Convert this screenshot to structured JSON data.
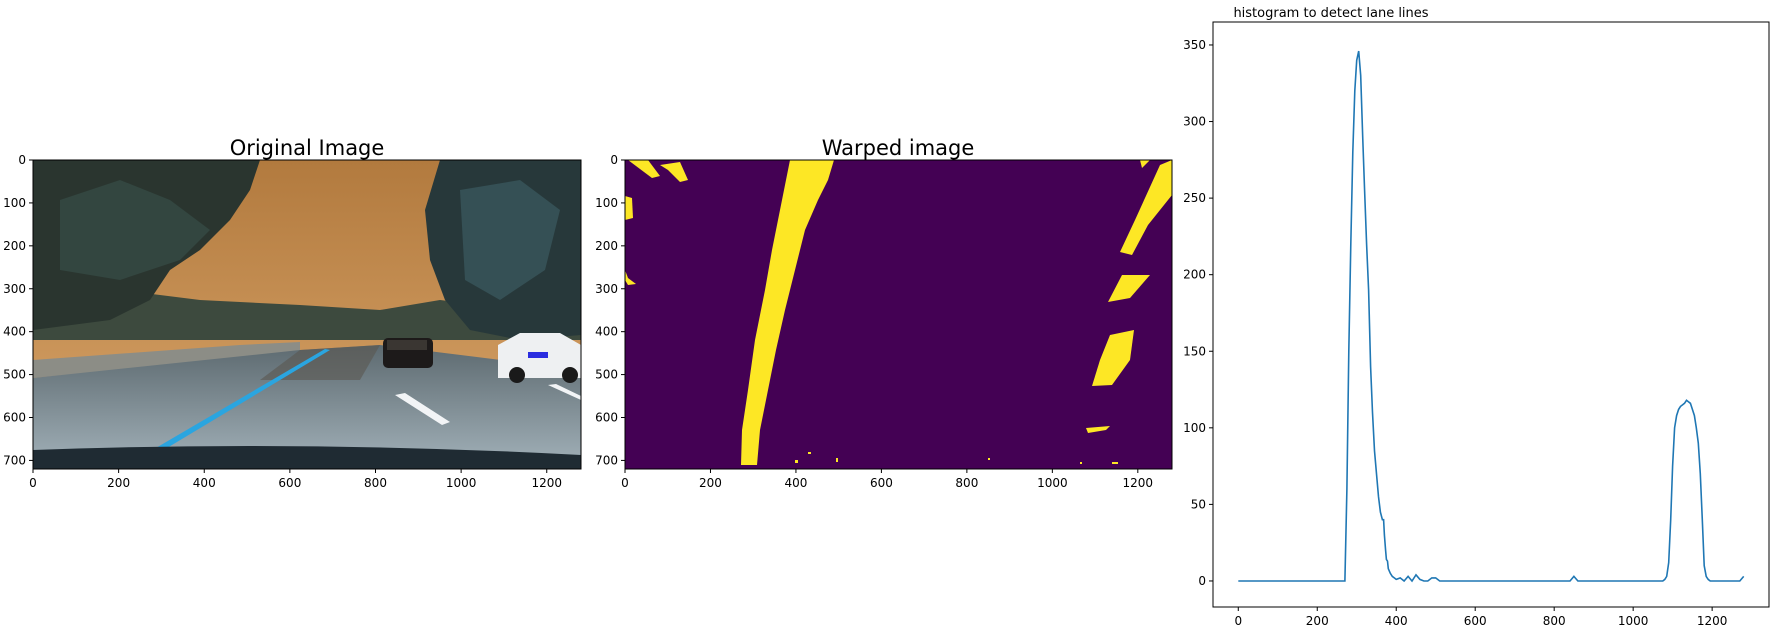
{
  "colors": {
    "line": "#1f77b4",
    "warped_background": "#440154",
    "warped_lane": "#fde725",
    "road_sky": "#c9945a",
    "road_surface": "#8a9aa3",
    "lane_marking_blue": "#2aa5e0"
  },
  "panels": {
    "original": {
      "title": "Original Image",
      "image_description_icon": "road-photo",
      "x_ticks": [
        "0",
        "200",
        "400",
        "600",
        "800",
        "1000",
        "1200"
      ],
      "y_ticks": [
        "0",
        "100",
        "200",
        "300",
        "400",
        "500",
        "600",
        "700"
      ]
    },
    "warped": {
      "title": "Warped image",
      "x_ticks": [
        "0",
        "200",
        "400",
        "600",
        "800",
        "1000",
        "1200"
      ],
      "y_ticks": [
        "0",
        "100",
        "200",
        "300",
        "400",
        "500",
        "600",
        "700"
      ]
    }
  },
  "chart_data": {
    "type": "line",
    "title": "histogram to detect lane lines",
    "xlabel": "",
    "ylabel": "",
    "xlim": [
      -64,
      1344
    ],
    "ylim": [
      -17,
      365
    ],
    "x_ticks": [
      0,
      200,
      400,
      600,
      800,
      1000,
      1200
    ],
    "y_ticks": [
      0,
      50,
      100,
      150,
      200,
      250,
      300,
      350
    ],
    "grid": false,
    "series": [
      {
        "x": [
          0,
          100,
          200,
          270,
          275,
          280,
          285,
          290,
          295,
          300,
          305,
          310,
          315,
          320,
          325,
          330,
          335,
          340,
          345,
          350,
          355,
          360,
          365,
          368,
          370,
          373,
          375,
          378,
          380,
          385,
          390,
          395,
          400,
          410,
          420,
          430,
          440,
          450,
          460,
          470,
          480,
          490,
          500,
          510,
          520,
          600,
          700,
          800,
          840,
          850,
          860,
          900,
          1000,
          1050,
          1075,
          1080,
          1085,
          1090,
          1095,
          1100,
          1105,
          1110,
          1115,
          1120,
          1125,
          1130,
          1135,
          1140,
          1145,
          1150,
          1155,
          1160,
          1165,
          1170,
          1175,
          1180,
          1185,
          1190,
          1195,
          1200,
          1210,
          1230,
          1250,
          1270,
          1280
        ],
        "y": [
          0,
          0,
          0,
          0,
          60,
          150,
          220,
          280,
          320,
          340,
          346,
          330,
          290,
          255,
          220,
          190,
          140,
          110,
          85,
          70,
          55,
          45,
          40,
          40,
          30,
          20,
          14,
          13,
          8,
          5,
          3,
          2,
          1,
          2,
          0,
          3,
          0,
          4,
          1,
          0,
          0,
          2,
          2,
          0,
          0,
          0,
          0,
          0,
          0,
          3,
          0,
          0,
          0,
          0,
          0,
          1,
          3,
          12,
          40,
          75,
          100,
          108,
          112,
          114,
          115,
          116,
          118,
          117,
          116,
          112,
          108,
          100,
          90,
          70,
          40,
          10,
          3,
          1,
          0,
          0,
          0,
          0,
          0,
          0,
          3
        ]
      }
    ]
  }
}
